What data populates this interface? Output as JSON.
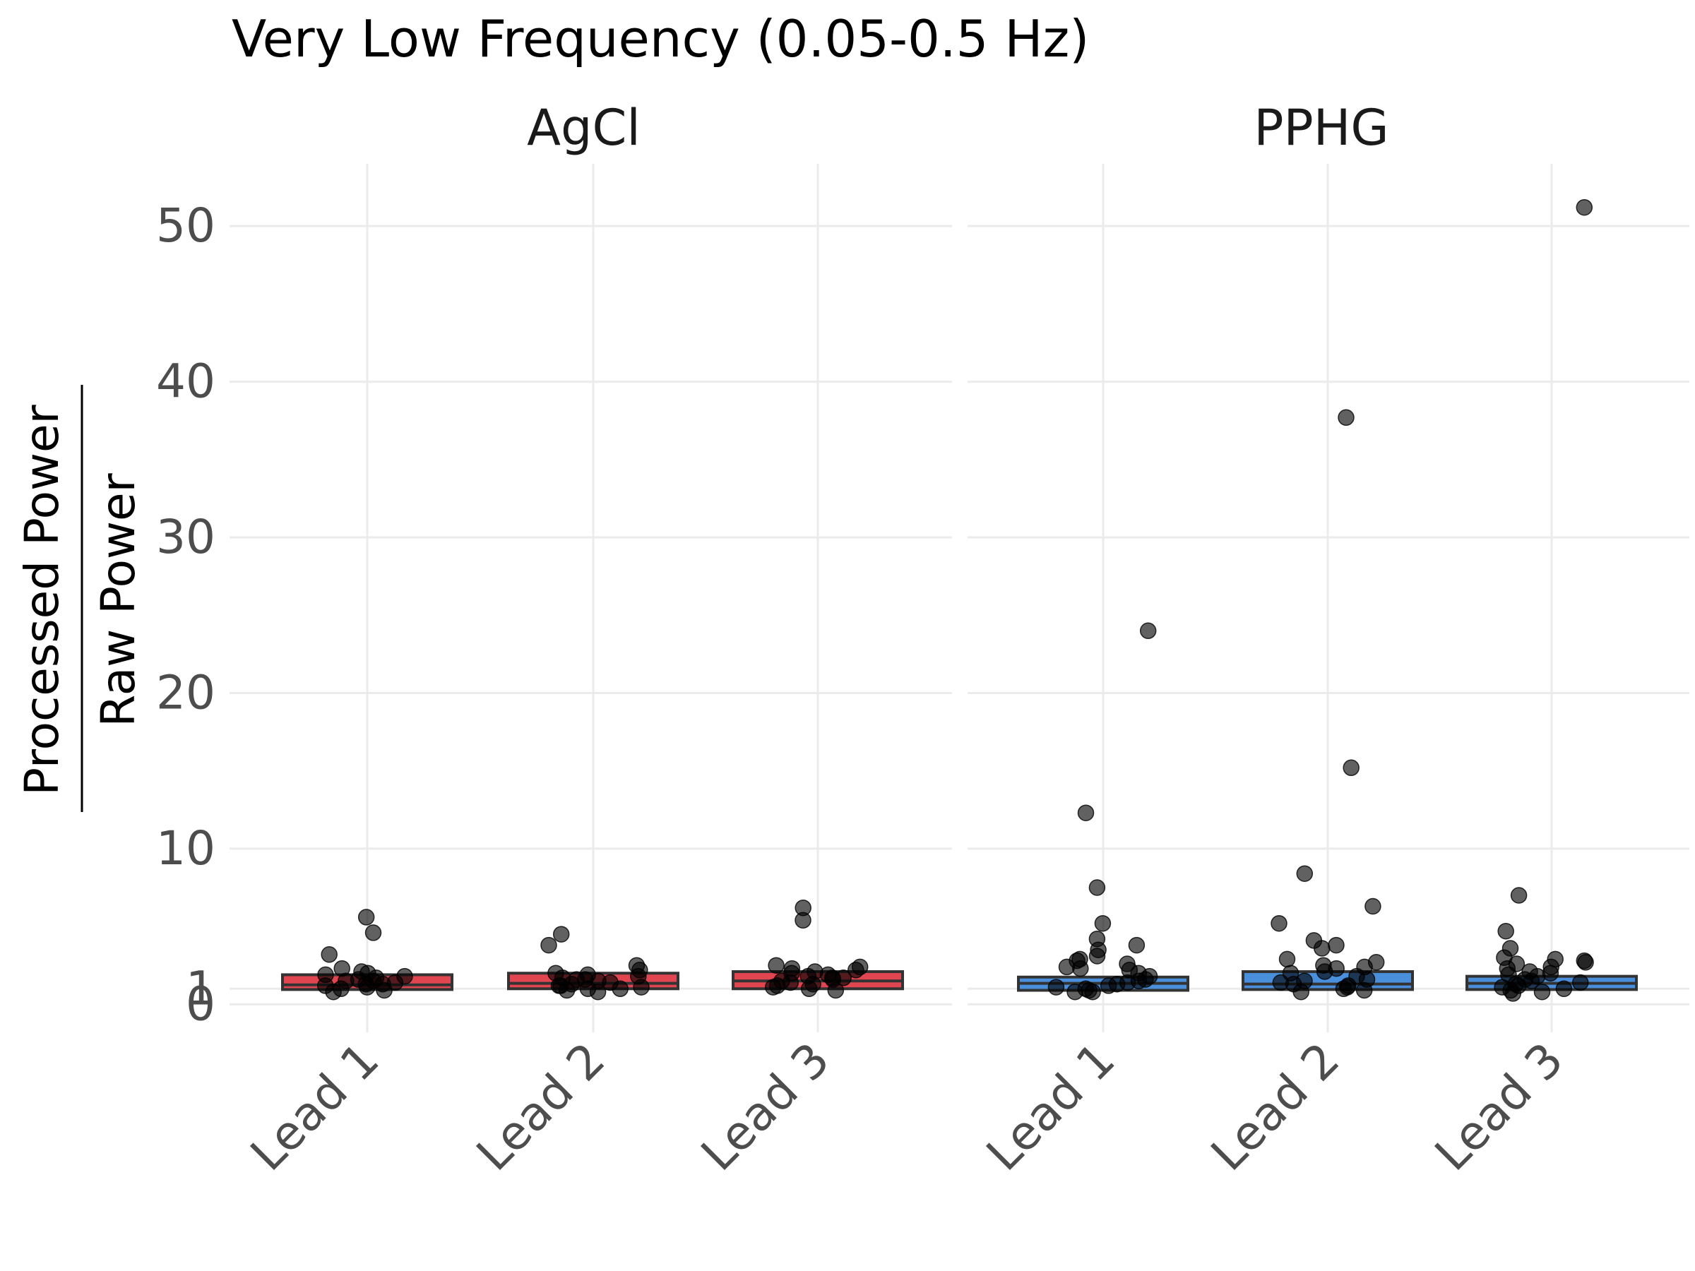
{
  "chart_data": {
    "type": "box",
    "title": "Very Low Frequency (0.05-0.5 Hz)",
    "ylabel": {
      "numerator": "Processed Power",
      "denominator": "Raw Power"
    },
    "y_ticks": [
      0,
      1,
      10,
      20,
      30,
      40,
      50
    ],
    "y_tick_labels": [
      "0",
      "1",
      "10",
      "20",
      "30",
      "40",
      "50"
    ],
    "ylim": [
      -1.8,
      54
    ],
    "grid": true,
    "categories": [
      "Lead 1",
      "Lead 2",
      "Lead 3"
    ],
    "panels": [
      {
        "name": "AgCl",
        "color": "#e04550",
        "boxes": [
          {
            "category": "Lead 1",
            "q1": 0.95,
            "median": 1.25,
            "q3": 1.9
          },
          {
            "category": "Lead 2",
            "q1": 1.0,
            "median": 1.35,
            "q3": 2.0
          },
          {
            "category": "Lead 3",
            "q1": 1.0,
            "median": 1.5,
            "q3": 2.1
          }
        ],
        "points": [
          {
            "category": "Lead 1",
            "values": [
              5.6,
              4.6,
              3.2,
              2.3,
              2.1,
              2.0,
              1.9,
              1.8,
              1.7,
              1.6,
              1.5,
              1.4,
              1.3,
              1.2,
              1.1,
              1.0,
              0.9,
              0.8,
              1.5,
              1.3
            ]
          },
          {
            "category": "Lead 2",
            "values": [
              4.5,
              3.8,
              2.5,
              2.2,
              2.0,
              1.9,
              1.8,
              1.7,
              1.6,
              1.5,
              1.4,
              1.3,
              1.2,
              1.1,
              1.0,
              0.9,
              0.8,
              1.6,
              1.2,
              1.0
            ]
          },
          {
            "category": "Lead 3",
            "values": [
              6.2,
              5.4,
              2.5,
              2.4,
              2.3,
              2.2,
              2.1,
              2.0,
              1.9,
              1.8,
              1.7,
              1.6,
              1.5,
              1.4,
              1.3,
              1.2,
              1.1,
              1.0,
              0.9,
              1.7
            ]
          }
        ]
      },
      {
        "name": "PPHG",
        "color": "#4a8fdc",
        "boxes": [
          {
            "category": "Lead 1",
            "q1": 0.9,
            "median": 1.35,
            "q3": 1.75
          },
          {
            "category": "Lead 2",
            "q1": 0.95,
            "median": 1.3,
            "q3": 2.1
          },
          {
            "category": "Lead 3",
            "q1": 0.95,
            "median": 1.35,
            "q3": 1.8
          }
        ],
        "points": [
          {
            "category": "Lead 1",
            "values": [
              24,
              12.3,
              7.5,
              5.2,
              4.2,
              3.8,
              3.5,
              3.1,
              2.9,
              2.8,
              2.6,
              2.4,
              2.3,
              2.2,
              2.0,
              1.8,
              1.6,
              1.5,
              1.4,
              1.3,
              1.2,
              1.1,
              1.0,
              0.9,
              0.8,
              0.8
            ]
          },
          {
            "category": "Lead 2",
            "values": [
              37.7,
              15.2,
              8.4,
              6.3,
              5.2,
              4.1,
              3.8,
              3.6,
              2.9,
              2.7,
              2.5,
              2.4,
              2.3,
              2.1,
              2.0,
              1.8,
              1.6,
              1.5,
              1.4,
              1.3,
              1.2,
              1.1,
              1.0,
              0.9,
              0.8
            ]
          },
          {
            "category": "Lead 3",
            "values": [
              51.2,
              7.0,
              4.7,
              3.6,
              3.0,
              2.9,
              2.8,
              2.7,
              2.6,
              2.4,
              2.3,
              2.1,
              2.0,
              1.9,
              1.8,
              1.6,
              1.5,
              1.4,
              1.3,
              1.2,
              1.1,
              1.0,
              0.9,
              0.8,
              0.7
            ]
          }
        ]
      }
    ]
  }
}
